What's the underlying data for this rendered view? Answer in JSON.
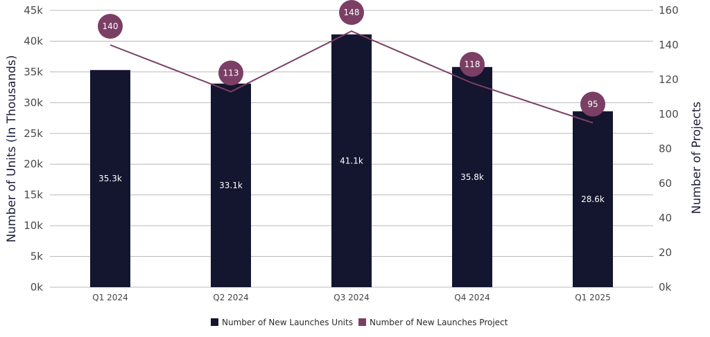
{
  "chart_data": {
    "type": "bar",
    "categories": [
      "Q1 2024",
      "Q2 2024",
      "Q3 2024",
      "Q4 2024",
      "Q1 2025"
    ],
    "series": [
      {
        "name": "Number of New Launches Units",
        "axis": "left",
        "type": "bar",
        "values": [
          35.3,
          33.1,
          41.1,
          35.8,
          28.6
        ],
        "labels": [
          "35.3k",
          "33.1k",
          "41.1k",
          "35.8k",
          "28.6k"
        ],
        "color": "#14152e"
      },
      {
        "name": "Number of New Launches Project",
        "axis": "right",
        "type": "line",
        "values": [
          140,
          113,
          148,
          118,
          95
        ],
        "labels": [
          "140",
          "113",
          "148",
          "118",
          "95"
        ],
        "color": "#7b3f65"
      }
    ],
    "ylabel": "Number of Units (In Thousands)",
    "y2label": "Number of Projects",
    "ylim": [
      0,
      45
    ],
    "y2lim": [
      0,
      160
    ],
    "yticks": [
      "0k",
      "5k",
      "10k",
      "15k",
      "20k",
      "25k",
      "30k",
      "35k",
      "40k",
      "45k"
    ],
    "y2ticks": [
      "0k",
      "20",
      "40",
      "60",
      "80",
      "100",
      "120",
      "140",
      "160"
    ],
    "grid": true,
    "legend_position": "bottom"
  }
}
